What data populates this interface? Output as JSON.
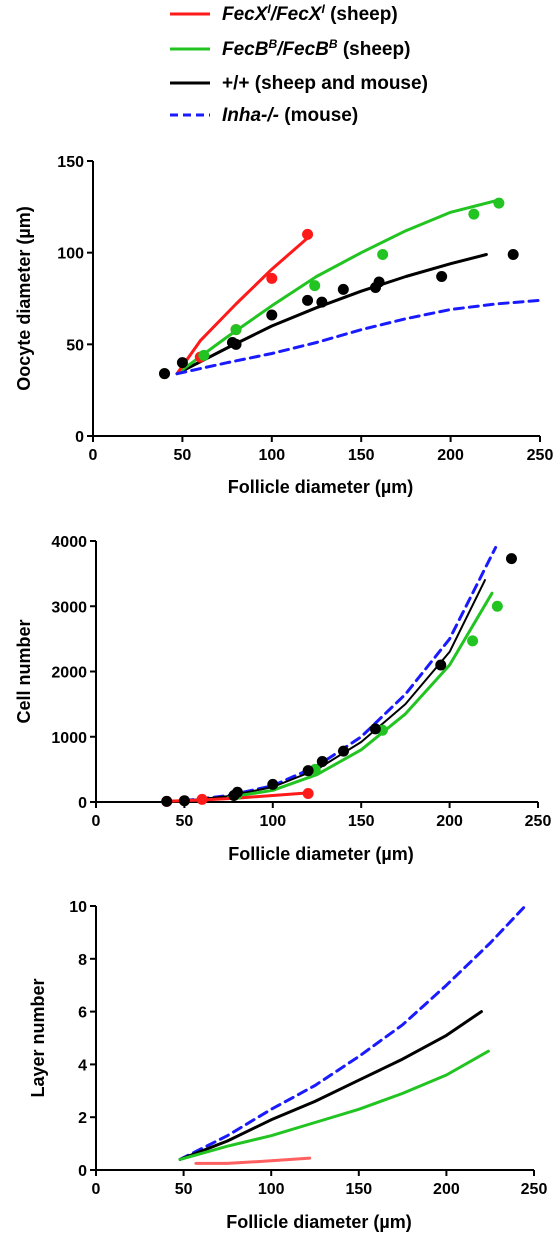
{
  "legend": [
    {
      "parts": [
        {
          "t": "FecX",
          "i": true
        },
        {
          "t": "I",
          "i": true,
          "sup": true
        },
        {
          "t": "/",
          "i": true
        },
        {
          "t": "FecX",
          "i": true
        },
        {
          "t": "I",
          "i": true,
          "sup": true
        },
        {
          "t": " (sheep)",
          "i": false
        }
      ],
      "color": "#ff1a1a",
      "dash": false
    },
    {
      "parts": [
        {
          "t": "FecB",
          "i": true
        },
        {
          "t": "B",
          "i": true,
          "sup": true
        },
        {
          "t": "/",
          "i": true
        },
        {
          "t": "FecB",
          "i": true
        },
        {
          "t": "B",
          "i": true,
          "sup": true
        },
        {
          "t": " (sheep)",
          "i": false
        }
      ],
      "color": "#22c422",
      "dash": false
    },
    {
      "parts": [
        {
          "t": "+/+ (sheep and mouse)",
          "i": false
        }
      ],
      "color": "#000000",
      "dash": false
    },
    {
      "parts": [
        {
          "t": "Inha-/-",
          "i": true
        },
        {
          "t": " (mouse)",
          "i": false
        }
      ],
      "color": "#1a1aff",
      "dash": true
    }
  ],
  "chart_data": [
    {
      "type": "scatter",
      "xlabel": "Follicle diameter (µm)",
      "ylabel": "Oocyte diameter (µm)",
      "xlim": [
        0,
        250
      ],
      "ylim": [
        0,
        150
      ],
      "xticks": [
        0,
        50,
        100,
        150,
        200,
        250
      ],
      "yticks": [
        0,
        50,
        100,
        150
      ],
      "points": [
        {
          "series": "FecXI/FecXI",
          "color": "#ff1a1a",
          "xy": [
            [
              40,
              34
            ],
            [
              60,
              43
            ],
            [
              80,
              58
            ],
            [
              100,
              86
            ],
            [
              120,
              110
            ]
          ]
        },
        {
          "series": "FecBB/FecBB",
          "color": "#22c422",
          "xy": [
            [
              40,
              34
            ],
            [
              62,
              44
            ],
            [
              80,
              58
            ],
            [
              124,
              82
            ],
            [
              162,
              99
            ],
            [
              213,
              121
            ],
            [
              227,
              127
            ]
          ]
        },
        {
          "series": "+/+",
          "color": "#000000",
          "xy": [
            [
              40,
              34
            ],
            [
              50,
              40
            ],
            [
              78,
              51
            ],
            [
              80,
              50
            ],
            [
              100,
              66
            ],
            [
              120,
              74
            ],
            [
              128,
              73
            ],
            [
              140,
              80
            ],
            [
              158,
              81
            ],
            [
              160,
              84
            ],
            [
              195,
              87
            ],
            [
              235,
              99
            ]
          ]
        }
      ],
      "lines": [
        {
          "series": "+/+",
          "color": "#000000",
          "dash": false,
          "width": 3,
          "xy": [
            [
              47,
              34
            ],
            [
              75,
              48
            ],
            [
              100,
              60
            ],
            [
              125,
              70
            ],
            [
              150,
              79
            ],
            [
              175,
              87
            ],
            [
              200,
              94
            ],
            [
              220,
              99
            ]
          ]
        },
        {
          "series": "FecBB/FecBB",
          "color": "#22c422",
          "dash": false,
          "width": 3,
          "xy": [
            [
              47,
              34
            ],
            [
              75,
              54
            ],
            [
              100,
              71
            ],
            [
              125,
              87
            ],
            [
              150,
              100
            ],
            [
              175,
              112
            ],
            [
              200,
              122
            ],
            [
              228,
              129
            ]
          ]
        },
        {
          "series": "FecXI/FecXI",
          "color": "#ff1a1a",
          "dash": false,
          "width": 3,
          "xy": [
            [
              47,
              34
            ],
            [
              60,
              52
            ],
            [
              80,
              72
            ],
            [
              100,
              91
            ],
            [
              120,
              108
            ]
          ]
        },
        {
          "series": "Inha-/-",
          "color": "#1a1aff",
          "dash": true,
          "width": 3,
          "xy": [
            [
              47,
              34
            ],
            [
              75,
              40
            ],
            [
              100,
              45
            ],
            [
              125,
              51
            ],
            [
              150,
              58
            ],
            [
              175,
              64
            ],
            [
              200,
              69
            ],
            [
              225,
              72
            ],
            [
              250,
              74
            ]
          ]
        }
      ]
    },
    {
      "type": "scatter",
      "xlabel": "Follicle diameter (µm)",
      "ylabel": "Cell number",
      "xlim": [
        0,
        250
      ],
      "ylim": [
        0,
        4000
      ],
      "xticks": [
        0,
        50,
        100,
        150,
        200,
        250
      ],
      "yticks": [
        0,
        1000,
        2000,
        3000,
        4000
      ],
      "points": [
        {
          "series": "FecXI/FecXI",
          "color": "#ff1a1a",
          "xy": [
            [
              40,
              10
            ],
            [
              60,
              40
            ],
            [
              120,
              130
            ]
          ]
        },
        {
          "series": "FecBB/FecBB",
          "color": "#22c422",
          "xy": [
            [
              80,
              120
            ],
            [
              124,
              500
            ],
            [
              162,
              1100
            ],
            [
              213,
              2470
            ],
            [
              227,
              3000
            ]
          ]
        },
        {
          "series": "+/+",
          "color": "#000000",
          "xy": [
            [
              40,
              10
            ],
            [
              50,
              20
            ],
            [
              78,
              100
            ],
            [
              80,
              150
            ],
            [
              100,
              270
            ],
            [
              120,
              480
            ],
            [
              128,
              620
            ],
            [
              140,
              780
            ],
            [
              158,
              1120
            ],
            [
              195,
              2100
            ],
            [
              235,
              3730
            ]
          ]
        }
      ],
      "lines": [
        {
          "series": "Inha-/-",
          "color": "#1a1aff",
          "dash": true,
          "width": 3,
          "xy": [
            [
              50,
              20
            ],
            [
              75,
              100
            ],
            [
              100,
              250
            ],
            [
              125,
              550
            ],
            [
              150,
              1000
            ],
            [
              175,
              1650
            ],
            [
              200,
              2500
            ],
            [
              226,
              3900
            ]
          ]
        },
        {
          "series": "+/+",
          "color": "#000000",
          "dash": false,
          "width": 2,
          "xy": [
            [
              50,
              20
            ],
            [
              75,
              90
            ],
            [
              100,
              230
            ],
            [
              125,
              500
            ],
            [
              150,
              920
            ],
            [
              175,
              1500
            ],
            [
              200,
              2300
            ],
            [
              220,
              3400
            ]
          ]
        },
        {
          "series": "FecBB/FecBB",
          "color": "#22c422",
          "dash": false,
          "width": 3,
          "xy": [
            [
              75,
              70
            ],
            [
              100,
              180
            ],
            [
              125,
              420
            ],
            [
              150,
              800
            ],
            [
              175,
              1350
            ],
            [
              200,
              2100
            ],
            [
              224,
              3200
            ]
          ]
        },
        {
          "series": "FecXI/FecXI",
          "color": "#ff1a1a",
          "dash": false,
          "width": 3,
          "xy": [
            [
              40,
              10
            ],
            [
              60,
              30
            ],
            [
              80,
              60
            ],
            [
              100,
              100
            ],
            [
              120,
              140
            ]
          ]
        }
      ]
    },
    {
      "type": "line",
      "xlabel": "Follicle diameter (µm)",
      "ylabel": "Layer number",
      "xlim": [
        0,
        250
      ],
      "ylim": [
        0,
        10
      ],
      "xticks": [
        0,
        50,
        100,
        150,
        200,
        250
      ],
      "yticks": [
        0,
        2,
        4,
        6,
        8,
        10
      ],
      "points": [],
      "lines": [
        {
          "series": "Inha-/-",
          "color": "#1a1aff",
          "dash": true,
          "width": 3,
          "xy": [
            [
              48,
              0.4
            ],
            [
              75,
              1.3
            ],
            [
              100,
              2.3
            ],
            [
              125,
              3.2
            ],
            [
              150,
              4.3
            ],
            [
              175,
              5.5
            ],
            [
              200,
              7.0
            ],
            [
              225,
              8.6
            ],
            [
              245,
              10.0
            ]
          ]
        },
        {
          "series": "+/+",
          "color": "#000000",
          "dash": false,
          "width": 3,
          "xy": [
            [
              48,
              0.4
            ],
            [
              75,
              1.1
            ],
            [
              100,
              1.9
            ],
            [
              125,
              2.6
            ],
            [
              150,
              3.4
            ],
            [
              175,
              4.2
            ],
            [
              200,
              5.1
            ],
            [
              220,
              6.0
            ]
          ]
        },
        {
          "series": "FecBB/FecBB",
          "color": "#22c422",
          "dash": false,
          "width": 3,
          "xy": [
            [
              48,
              0.4
            ],
            [
              75,
              0.9
            ],
            [
              100,
              1.3
            ],
            [
              125,
              1.8
            ],
            [
              150,
              2.3
            ],
            [
              175,
              2.9
            ],
            [
              200,
              3.6
            ],
            [
              224,
              4.5
            ]
          ]
        },
        {
          "series": "FecXI/FecXI",
          "color": "#ff6060",
          "dash": false,
          "width": 3,
          "xy": [
            [
              57,
              0.25
            ],
            [
              75,
              0.25
            ],
            [
              100,
              0.35
            ],
            [
              122,
              0.45
            ]
          ]
        }
      ]
    }
  ]
}
